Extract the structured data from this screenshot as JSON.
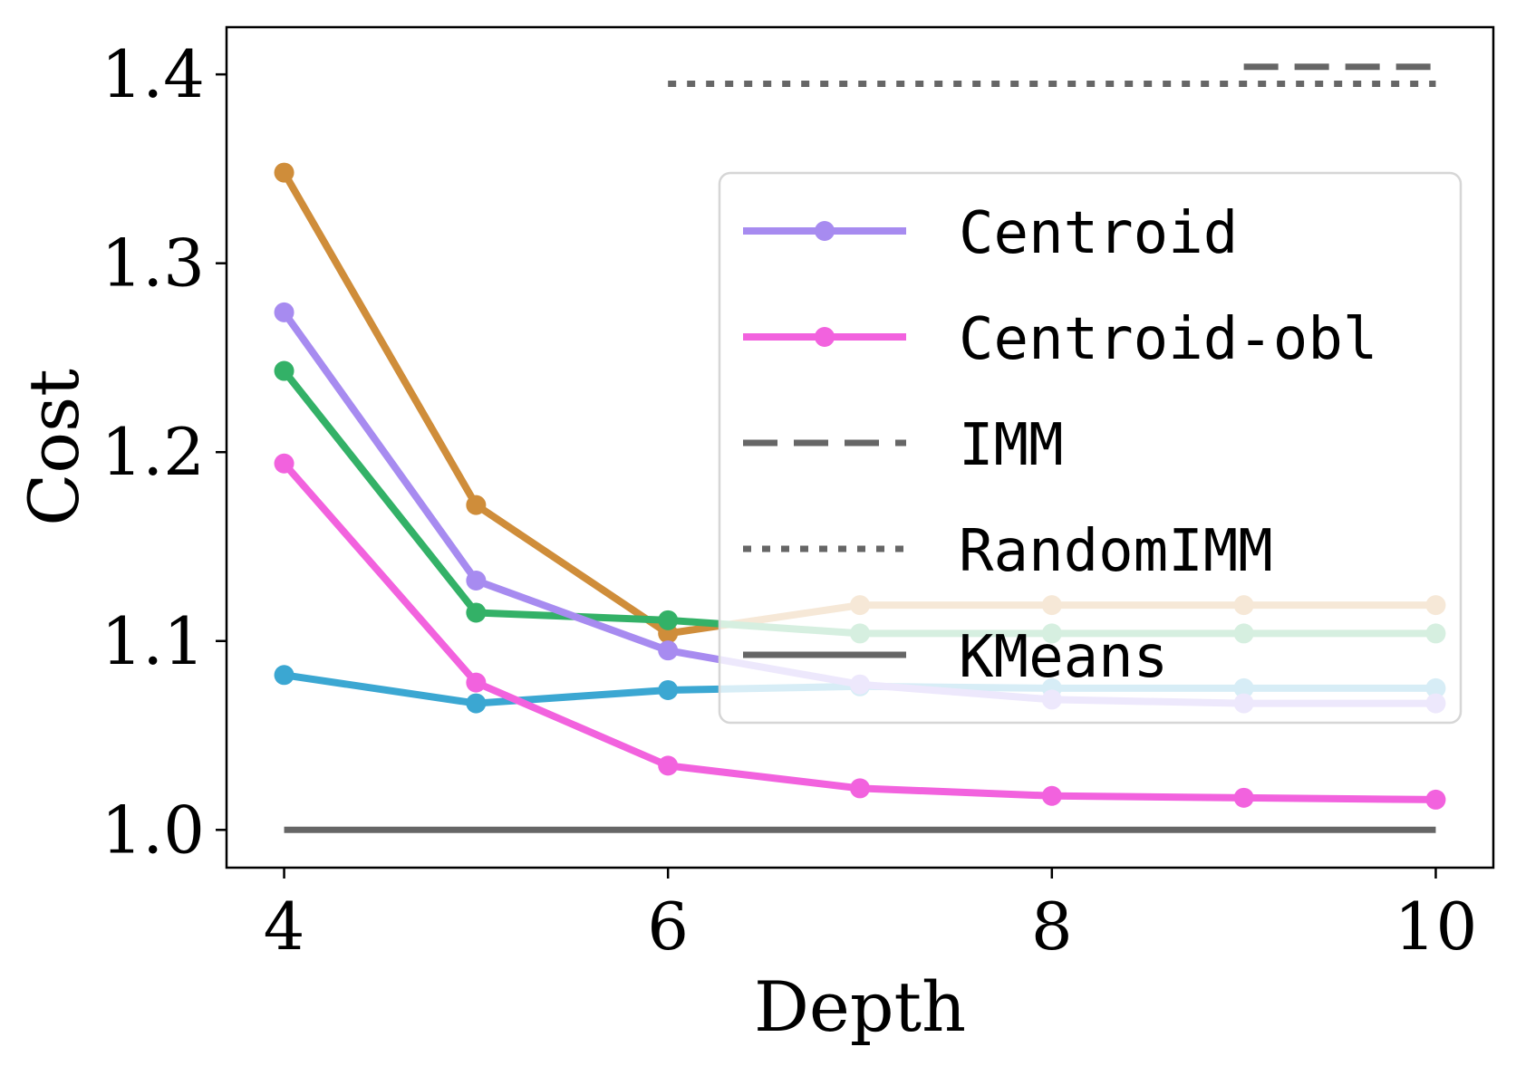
{
  "chart_data": {
    "type": "line",
    "xlabel": "Depth",
    "ylabel": "Cost",
    "xlim": [
      3.7,
      10.3
    ],
    "ylim": [
      0.98,
      1.425
    ],
    "xticks": [
      4,
      6,
      8,
      10
    ],
    "yticks": [
      1.0,
      1.1,
      1.2,
      1.3,
      1.4
    ],
    "xtick_labels": [
      "4",
      "6",
      "8",
      "10"
    ],
    "ytick_labels": [
      "1.0",
      "1.1",
      "1.2",
      "1.3",
      "1.4"
    ],
    "grid": false,
    "legend_position": "center-right",
    "x": [
      4,
      5,
      6,
      7,
      8,
      9,
      10
    ],
    "series": [
      {
        "id": "orange",
        "color": "#cf8d3a",
        "marker": true,
        "dash": "solid",
        "values": [
          1.348,
          1.172,
          1.104,
          1.119,
          1.119,
          1.119,
          1.119
        ]
      },
      {
        "id": "green",
        "color": "#33b167",
        "marker": true,
        "dash": "solid",
        "values": [
          1.243,
          1.115,
          1.111,
          1.104,
          1.104,
          1.104,
          1.104
        ]
      },
      {
        "id": "blue",
        "color": "#3ba7d2",
        "marker": true,
        "dash": "solid",
        "values": [
          1.082,
          1.067,
          1.074,
          1.076,
          1.075,
          1.075,
          1.075
        ]
      },
      {
        "name": "Centroid",
        "color": "#a78bf0",
        "marker": true,
        "dash": "solid",
        "values": [
          1.274,
          1.132,
          1.095,
          1.077,
          1.069,
          1.067,
          1.067
        ]
      },
      {
        "name": "Centroid-obl",
        "color": "#f262de",
        "marker": true,
        "dash": "solid",
        "values": [
          1.194,
          1.078,
          1.034,
          1.022,
          1.018,
          1.017,
          1.016
        ]
      },
      {
        "name": "IMM",
        "color": "#666666",
        "marker": false,
        "dash": "dashed",
        "x": [
          9,
          10
        ],
        "values": [
          1.404,
          1.404
        ]
      },
      {
        "name": "RandomIMM",
        "color": "#666666",
        "marker": false,
        "dash": "dotted",
        "x": [
          6,
          10
        ],
        "values": [
          1.395,
          1.395
        ]
      },
      {
        "name": "KMeans",
        "color": "#666666",
        "marker": false,
        "dash": "solid",
        "x": [
          4,
          10
        ],
        "values": [
          1.0,
          1.0
        ]
      }
    ],
    "legend": [
      "Centroid",
      "Centroid-obl",
      "IMM",
      "RandomIMM",
      "KMeans"
    ]
  }
}
